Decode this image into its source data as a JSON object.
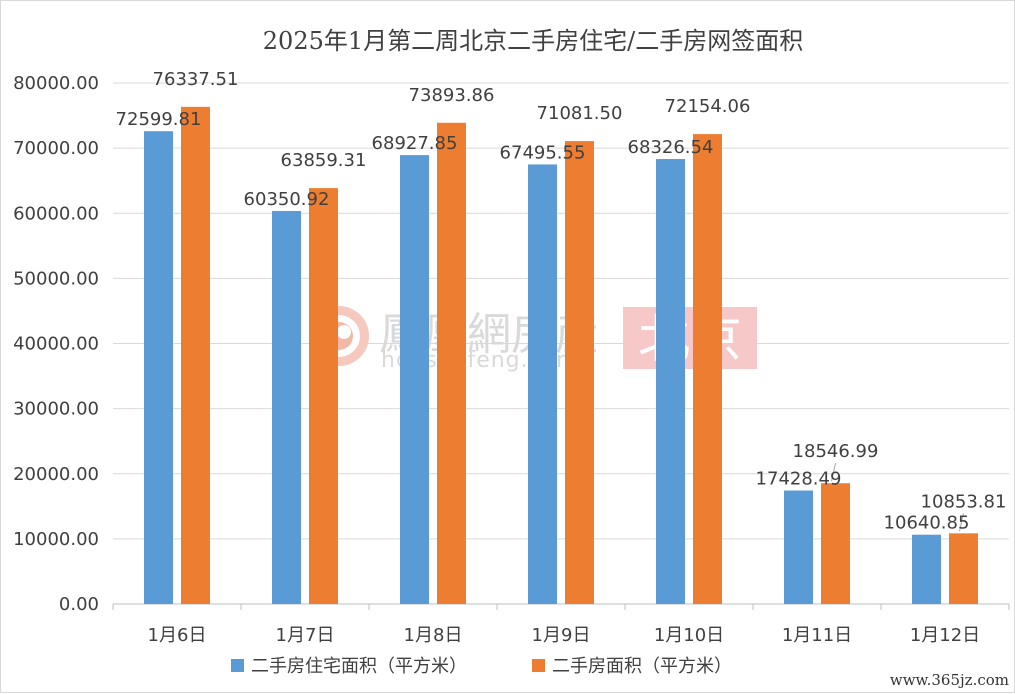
{
  "chart_data": {
    "type": "bar",
    "title": "2025年1月第二周北京二手房住宅/二手房网签面积",
    "categories": [
      "1月6日",
      "1月7日",
      "1月8日",
      "1月9日",
      "1月10日",
      "1月11日",
      "1月12日"
    ],
    "series": [
      {
        "name": "二手房住宅面积（平方米）",
        "color": "#5b9bd5",
        "values": [
          72599.81,
          60350.92,
          68927.85,
          67495.55,
          68326.54,
          17428.49,
          10640.85
        ],
        "labels": [
          "72599.81",
          "60350.92",
          "68927.85",
          "67495.55",
          "68326.54",
          "17428.49",
          "10640.85"
        ]
      },
      {
        "name": "二手房面积（平方米）",
        "color": "#ed7d31",
        "values": [
          76337.51,
          63859.31,
          73893.86,
          71081.5,
          72154.06,
          18546.99,
          10853.81
        ],
        "labels": [
          "76337.51",
          "63859.31",
          "73893.86",
          "71081.50",
          "72154.06",
          "18546.99",
          "10853.81"
        ]
      }
    ],
    "ylim": [
      0,
      80000
    ],
    "yticks": [
      "0.00",
      "10000.00",
      "20000.00",
      "30000.00",
      "40000.00",
      "50000.00",
      "60000.00",
      "70000.00",
      "80000.00"
    ],
    "grid": true,
    "legend": "bottom"
  },
  "watermark": {
    "brand_cn": "鳳凰網房産",
    "brand_en": "house.ifeng.com",
    "city": "北京",
    "color_logo": "#f2b8a8",
    "color_city_bg": "#f6c8c8"
  },
  "site_mark": "www.365jz.com"
}
